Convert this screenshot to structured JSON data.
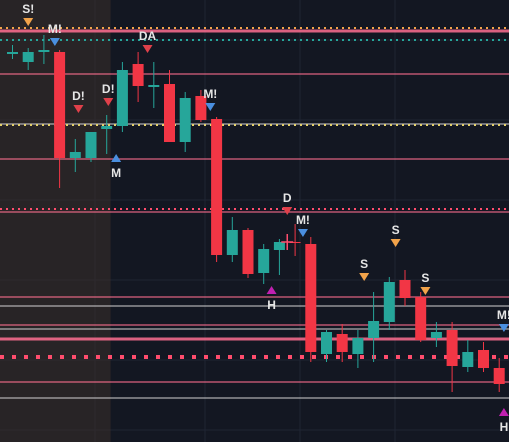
{
  "chart_data": {
    "type": "candlestick",
    "title": "",
    "xlabel": "",
    "ylabel": "",
    "grid": true,
    "ylim": [
      0,
      442
    ],
    "y_direction": "price rises upward; values in chart price units (higher = up)",
    "highlight_region": {
      "x_start": 0,
      "x_end": 6.25,
      "color": "#3a2f2a"
    },
    "candles": [
      {
        "x": 0,
        "open": 388,
        "high": 397,
        "low": 383,
        "close": 390
      },
      {
        "x": 1,
        "open": 380,
        "high": 394,
        "low": 372,
        "close": 390
      },
      {
        "x": 2,
        "open": 390,
        "high": 407,
        "low": 378,
        "close": 392
      },
      {
        "x": 3,
        "open": 390,
        "high": 392,
        "low": 254,
        "close": 284
      },
      {
        "x": 4,
        "open": 284,
        "high": 303,
        "low": 270,
        "close": 290
      },
      {
        "x": 5,
        "open": 284,
        "high": 310,
        "low": 280,
        "close": 310
      },
      {
        "x": 6,
        "open": 313,
        "high": 327,
        "low": 288,
        "close": 316
      },
      {
        "x": 7,
        "open": 316,
        "high": 380,
        "low": 310,
        "close": 372
      },
      {
        "x": 8,
        "open": 378,
        "high": 390,
        "low": 340,
        "close": 356
      },
      {
        "x": 9,
        "open": 355,
        "high": 380,
        "low": 334,
        "close": 357
      },
      {
        "x": 10,
        "open": 358,
        "high": 372,
        "low": 300,
        "close": 300
      },
      {
        "x": 11,
        "open": 300,
        "high": 350,
        "low": 290,
        "close": 344
      },
      {
        "x": 12,
        "open": 346,
        "high": 352,
        "low": 320,
        "close": 322
      },
      {
        "x": 13,
        "open": 323,
        "high": 325,
        "low": 180,
        "close": 187
      },
      {
        "x": 14,
        "open": 187,
        "high": 225,
        "low": 180,
        "close": 212
      },
      {
        "x": 15,
        "open": 212,
        "high": 214,
        "low": 164,
        "close": 168
      },
      {
        "x": 16,
        "open": 169,
        "high": 198,
        "low": 158,
        "close": 193
      },
      {
        "x": 17,
        "open": 192,
        "high": 203,
        "low": 167,
        "close": 200
      },
      {
        "x": 18,
        "open": 200,
        "high": 218,
        "low": 186,
        "close": 199
      },
      {
        "x": 19,
        "open": 198,
        "high": 205,
        "low": 80,
        "close": 90
      },
      {
        "x": 20,
        "open": 88,
        "high": 112,
        "low": 80,
        "close": 110
      },
      {
        "x": 21,
        "open": 108,
        "high": 118,
        "low": 80,
        "close": 90
      },
      {
        "x": 22,
        "open": 88,
        "high": 112,
        "low": 74,
        "close": 104
      },
      {
        "x": 23,
        "open": 104,
        "high": 150,
        "low": 80,
        "close": 121
      },
      {
        "x": 24,
        "open": 120,
        "high": 165,
        "low": 112,
        "close": 160
      },
      {
        "x": 25,
        "open": 162,
        "high": 172,
        "low": 136,
        "close": 144
      },
      {
        "x": 26,
        "open": 145,
        "high": 150,
        "low": 100,
        "close": 102
      },
      {
        "x": 27,
        "open": 104,
        "high": 120,
        "low": 95,
        "close": 110
      },
      {
        "x": 28,
        "open": 112,
        "high": 120,
        "low": 50,
        "close": 76
      },
      {
        "x": 29,
        "open": 75,
        "high": 102,
        "low": 70,
        "close": 90
      },
      {
        "x": 30,
        "open": 92,
        "high": 100,
        "low": 70,
        "close": 74
      },
      {
        "x": 31,
        "open": 74,
        "high": 84,
        "low": 50,
        "close": 58
      },
      {
        "x": 32,
        "open": 64,
        "high": 90,
        "low": 0,
        "close": 0
      }
    ],
    "levels": [
      {
        "y": 414,
        "color": "#f2a34a",
        "style": "dotted"
      },
      {
        "y": 411,
        "color": "#ff6f91",
        "style": "solid-thick"
      },
      {
        "y": 402,
        "color": "#26a69a",
        "style": "dotted"
      },
      {
        "y": 368,
        "color": "#ff6f91",
        "style": "solid"
      },
      {
        "y": 318,
        "color": "#c8c8c8",
        "style": "solid"
      },
      {
        "y": 317,
        "color": "#e6d26a",
        "style": "dotted"
      },
      {
        "y": 283,
        "color": "#ff6f91",
        "style": "solid"
      },
      {
        "y": 233,
        "color": "#ff4d6d",
        "style": "dotted"
      },
      {
        "y": 230,
        "color": "#ff6f91",
        "style": "solid"
      },
      {
        "y": 145,
        "color": "#ff6f91",
        "style": "solid"
      },
      {
        "y": 136,
        "color": "#c8c8c8",
        "style": "solid"
      },
      {
        "y": 117,
        "color": "#ff6f91",
        "style": "solid"
      },
      {
        "y": 113,
        "color": "#c8c8c8",
        "style": "solid"
      },
      {
        "y": 103,
        "color": "#ff6f91",
        "style": "solid-thick"
      },
      {
        "y": 85,
        "color": "#ff4d6d",
        "style": "dotted-thick"
      },
      {
        "y": 60,
        "color": "#ff6f91",
        "style": "solid"
      },
      {
        "y": 44,
        "color": "#c8c8c8",
        "style": "solid"
      }
    ],
    "markers": [
      {
        "x": 1,
        "y": 420,
        "shape": "down",
        "color": "#f2a34a",
        "label": "S!"
      },
      {
        "x": 2.7,
        "y": 400,
        "shape": "down",
        "color": "#4a8fe0",
        "label": "M!"
      },
      {
        "x": 4.2,
        "y": 333,
        "shape": "down",
        "color": "#e0404a",
        "label": "D!"
      },
      {
        "x": 6.1,
        "y": 340,
        "shape": "down",
        "color": "#e0404a",
        "label": "D!"
      },
      {
        "x": 6.6,
        "y": 284,
        "shape": "up",
        "color": "#4a8fe0",
        "label": "M"
      },
      {
        "x": 8.6,
        "y": 393,
        "shape": "down",
        "color": "#e0404a",
        "label": "DA"
      },
      {
        "x": 12.6,
        "y": 335,
        "shape": "down",
        "color": "#4a8fe0",
        "label": "M!"
      },
      {
        "x": 17.5,
        "y": 231,
        "shape": "down",
        "color": "#e0404a",
        "label": "D"
      },
      {
        "x": 18.5,
        "y": 209,
        "shape": "down",
        "color": "#4a8fe0",
        "label": "M!"
      },
      {
        "x": 16.5,
        "y": 152,
        "shape": "up",
        "color": "#c020b0",
        "label": "H"
      },
      {
        "x": 22.4,
        "y": 165,
        "shape": "down",
        "color": "#f2a34a",
        "label": "S"
      },
      {
        "x": 24.4,
        "y": 199,
        "shape": "down",
        "color": "#f2a34a",
        "label": "S"
      },
      {
        "x": 26.3,
        "y": 151,
        "shape": "down",
        "color": "#f2a34a",
        "label": "S"
      },
      {
        "x": 31.3,
        "y": 30,
        "shape": "up",
        "color": "#c020b0",
        "label": "H"
      },
      {
        "x": 31.3,
        "y": 114,
        "shape": "down",
        "color": "#4a8fe0",
        "label": "M!"
      }
    ],
    "cursor_marker": {
      "x": 17.5,
      "y": 200,
      "color": "#ff4d6d"
    }
  },
  "colors": {
    "background": "#131722",
    "up": "#26a69a",
    "down": "#f23645",
    "grid": "#1f2433"
  }
}
